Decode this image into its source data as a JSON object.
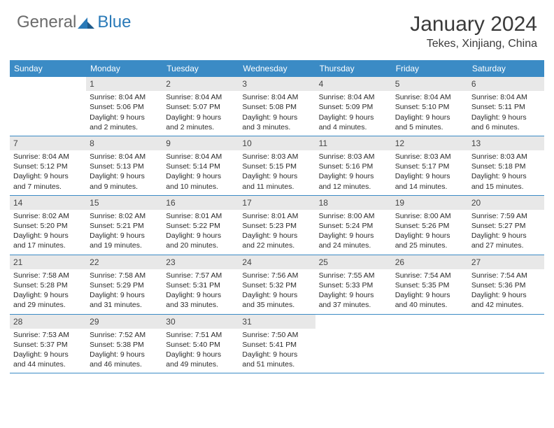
{
  "logo": {
    "part1": "General",
    "part2": "Blue"
  },
  "title": "January 2024",
  "location": "Tekes, Xinjiang, China",
  "colors": {
    "header_bg": "#3b8bc5",
    "header_text": "#ffffff",
    "daynum_bg": "#e8e8e8",
    "row_border": "#3b8bc5",
    "logo_gray": "#6b6b6b",
    "logo_blue": "#2a7ab8",
    "body_text": "#2a2a2a"
  },
  "day_labels": [
    "Sunday",
    "Monday",
    "Tuesday",
    "Wednesday",
    "Thursday",
    "Friday",
    "Saturday"
  ],
  "weeks": [
    [
      {
        "n": "",
        "sr": "",
        "ss": "",
        "dl1": "",
        "dl2": ""
      },
      {
        "n": "1",
        "sr": "Sunrise: 8:04 AM",
        "ss": "Sunset: 5:06 PM",
        "dl1": "Daylight: 9 hours",
        "dl2": "and 2 minutes."
      },
      {
        "n": "2",
        "sr": "Sunrise: 8:04 AM",
        "ss": "Sunset: 5:07 PM",
        "dl1": "Daylight: 9 hours",
        "dl2": "and 2 minutes."
      },
      {
        "n": "3",
        "sr": "Sunrise: 8:04 AM",
        "ss": "Sunset: 5:08 PM",
        "dl1": "Daylight: 9 hours",
        "dl2": "and 3 minutes."
      },
      {
        "n": "4",
        "sr": "Sunrise: 8:04 AM",
        "ss": "Sunset: 5:09 PM",
        "dl1": "Daylight: 9 hours",
        "dl2": "and 4 minutes."
      },
      {
        "n": "5",
        "sr": "Sunrise: 8:04 AM",
        "ss": "Sunset: 5:10 PM",
        "dl1": "Daylight: 9 hours",
        "dl2": "and 5 minutes."
      },
      {
        "n": "6",
        "sr": "Sunrise: 8:04 AM",
        "ss": "Sunset: 5:11 PM",
        "dl1": "Daylight: 9 hours",
        "dl2": "and 6 minutes."
      }
    ],
    [
      {
        "n": "7",
        "sr": "Sunrise: 8:04 AM",
        "ss": "Sunset: 5:12 PM",
        "dl1": "Daylight: 9 hours",
        "dl2": "and 7 minutes."
      },
      {
        "n": "8",
        "sr": "Sunrise: 8:04 AM",
        "ss": "Sunset: 5:13 PM",
        "dl1": "Daylight: 9 hours",
        "dl2": "and 9 minutes."
      },
      {
        "n": "9",
        "sr": "Sunrise: 8:04 AM",
        "ss": "Sunset: 5:14 PM",
        "dl1": "Daylight: 9 hours",
        "dl2": "and 10 minutes."
      },
      {
        "n": "10",
        "sr": "Sunrise: 8:03 AM",
        "ss": "Sunset: 5:15 PM",
        "dl1": "Daylight: 9 hours",
        "dl2": "and 11 minutes."
      },
      {
        "n": "11",
        "sr": "Sunrise: 8:03 AM",
        "ss": "Sunset: 5:16 PM",
        "dl1": "Daylight: 9 hours",
        "dl2": "and 12 minutes."
      },
      {
        "n": "12",
        "sr": "Sunrise: 8:03 AM",
        "ss": "Sunset: 5:17 PM",
        "dl1": "Daylight: 9 hours",
        "dl2": "and 14 minutes."
      },
      {
        "n": "13",
        "sr": "Sunrise: 8:03 AM",
        "ss": "Sunset: 5:18 PM",
        "dl1": "Daylight: 9 hours",
        "dl2": "and 15 minutes."
      }
    ],
    [
      {
        "n": "14",
        "sr": "Sunrise: 8:02 AM",
        "ss": "Sunset: 5:20 PM",
        "dl1": "Daylight: 9 hours",
        "dl2": "and 17 minutes."
      },
      {
        "n": "15",
        "sr": "Sunrise: 8:02 AM",
        "ss": "Sunset: 5:21 PM",
        "dl1": "Daylight: 9 hours",
        "dl2": "and 19 minutes."
      },
      {
        "n": "16",
        "sr": "Sunrise: 8:01 AM",
        "ss": "Sunset: 5:22 PM",
        "dl1": "Daylight: 9 hours",
        "dl2": "and 20 minutes."
      },
      {
        "n": "17",
        "sr": "Sunrise: 8:01 AM",
        "ss": "Sunset: 5:23 PM",
        "dl1": "Daylight: 9 hours",
        "dl2": "and 22 minutes."
      },
      {
        "n": "18",
        "sr": "Sunrise: 8:00 AM",
        "ss": "Sunset: 5:24 PM",
        "dl1": "Daylight: 9 hours",
        "dl2": "and 24 minutes."
      },
      {
        "n": "19",
        "sr": "Sunrise: 8:00 AM",
        "ss": "Sunset: 5:26 PM",
        "dl1": "Daylight: 9 hours",
        "dl2": "and 25 minutes."
      },
      {
        "n": "20",
        "sr": "Sunrise: 7:59 AM",
        "ss": "Sunset: 5:27 PM",
        "dl1": "Daylight: 9 hours",
        "dl2": "and 27 minutes."
      }
    ],
    [
      {
        "n": "21",
        "sr": "Sunrise: 7:58 AM",
        "ss": "Sunset: 5:28 PM",
        "dl1": "Daylight: 9 hours",
        "dl2": "and 29 minutes."
      },
      {
        "n": "22",
        "sr": "Sunrise: 7:58 AM",
        "ss": "Sunset: 5:29 PM",
        "dl1": "Daylight: 9 hours",
        "dl2": "and 31 minutes."
      },
      {
        "n": "23",
        "sr": "Sunrise: 7:57 AM",
        "ss": "Sunset: 5:31 PM",
        "dl1": "Daylight: 9 hours",
        "dl2": "and 33 minutes."
      },
      {
        "n": "24",
        "sr": "Sunrise: 7:56 AM",
        "ss": "Sunset: 5:32 PM",
        "dl1": "Daylight: 9 hours",
        "dl2": "and 35 minutes."
      },
      {
        "n": "25",
        "sr": "Sunrise: 7:55 AM",
        "ss": "Sunset: 5:33 PM",
        "dl1": "Daylight: 9 hours",
        "dl2": "and 37 minutes."
      },
      {
        "n": "26",
        "sr": "Sunrise: 7:54 AM",
        "ss": "Sunset: 5:35 PM",
        "dl1": "Daylight: 9 hours",
        "dl2": "and 40 minutes."
      },
      {
        "n": "27",
        "sr": "Sunrise: 7:54 AM",
        "ss": "Sunset: 5:36 PM",
        "dl1": "Daylight: 9 hours",
        "dl2": "and 42 minutes."
      }
    ],
    [
      {
        "n": "28",
        "sr": "Sunrise: 7:53 AM",
        "ss": "Sunset: 5:37 PM",
        "dl1": "Daylight: 9 hours",
        "dl2": "and 44 minutes."
      },
      {
        "n": "29",
        "sr": "Sunrise: 7:52 AM",
        "ss": "Sunset: 5:38 PM",
        "dl1": "Daylight: 9 hours",
        "dl2": "and 46 minutes."
      },
      {
        "n": "30",
        "sr": "Sunrise: 7:51 AM",
        "ss": "Sunset: 5:40 PM",
        "dl1": "Daylight: 9 hours",
        "dl2": "and 49 minutes."
      },
      {
        "n": "31",
        "sr": "Sunrise: 7:50 AM",
        "ss": "Sunset: 5:41 PM",
        "dl1": "Daylight: 9 hours",
        "dl2": "and 51 minutes."
      },
      {
        "n": "",
        "sr": "",
        "ss": "",
        "dl1": "",
        "dl2": ""
      },
      {
        "n": "",
        "sr": "",
        "ss": "",
        "dl1": "",
        "dl2": ""
      },
      {
        "n": "",
        "sr": "",
        "ss": "",
        "dl1": "",
        "dl2": ""
      }
    ]
  ]
}
